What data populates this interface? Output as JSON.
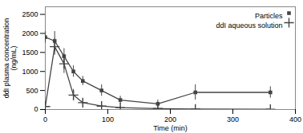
{
  "chart_data": {
    "type": "line",
    "xlabel": "Time (min)",
    "ylabel": "ddI plasma concentration\n(ng/mL)",
    "x": [
      0,
      15,
      30,
      45,
      60,
      90,
      120,
      180,
      240,
      360
    ],
    "series": [
      {
        "name": "Particles",
        "color": "#444444",
        "marker": "square",
        "line_style": "solid",
        "values": [
          1900,
          1800,
          1400,
          1000,
          750,
          500,
          250,
          150,
          450,
          450
        ],
        "errors": [
          150,
          250,
          200,
          150,
          120,
          150,
          100,
          100,
          200,
          150
        ]
      },
      {
        "name": "ddI aqueous solution",
        "color": "#444444",
        "marker": "plus",
        "line_style": "solid",
        "values": [
          80,
          1650,
          1200,
          380,
          180,
          90,
          50,
          25,
          15,
          8
        ],
        "errors": [
          40,
          220,
          250,
          150,
          70,
          40,
          25,
          15,
          15,
          8
        ]
      }
    ],
    "xlim": [
      0,
      400
    ],
    "ylim": [
      0,
      2700
    ],
    "xticks": [
      0,
      100,
      200,
      300,
      400
    ],
    "yticks": [
      0,
      500,
      1000,
      1500,
      2000,
      2500
    ],
    "grid": false,
    "legend": "upper right"
  }
}
